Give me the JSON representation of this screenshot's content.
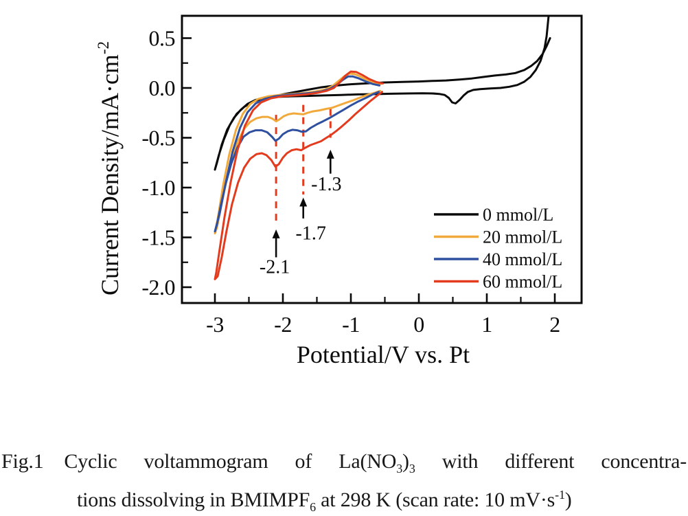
{
  "caption": {
    "line1": [
      {
        "t": "Fig.1"
      },
      {
        "t": " "
      },
      {
        "t": "Cyclic voltammogram of La(NO"
      },
      {
        "t": "3",
        "sub": true
      },
      {
        "t": ")"
      },
      {
        "t": "3",
        "sub": true
      },
      {
        "t": " with different concentra-"
      }
    ],
    "line2": [
      {
        "t": "tions dissolving in BMIMPF"
      },
      {
        "t": "6",
        "sub": true
      },
      {
        "t": " at 298 K (scan rate: 10 mV·s"
      },
      {
        "t": "-1",
        "sup": true
      },
      {
        "t": ")"
      }
    ]
  },
  "chart_data": {
    "type": "line",
    "title": "",
    "xlabel": "Potential/V vs. Pt",
    "ylabel": "Current Density/mA·cm-2",
    "ylabel_segments": [
      {
        "t": "Current Density/mA·cm"
      },
      {
        "t": "-2",
        "sup": true
      }
    ],
    "xlim": [
      -3.49,
      2.4
    ],
    "ylim": [
      -2.16,
      0.72
    ],
    "grid": false,
    "x_ticks": {
      "major": [
        {
          "v": -3,
          "label": "-3"
        },
        {
          "v": -2,
          "label": "-2"
        },
        {
          "v": -1,
          "label": "-1"
        },
        {
          "v": 0,
          "label": "0"
        },
        {
          "v": 1,
          "label": "1"
        },
        {
          "v": 2,
          "label": "2"
        }
      ],
      "minor": [
        -2.5,
        -1.5,
        -0.5,
        0.5,
        1.5
      ]
    },
    "y_ticks": {
      "major": [
        {
          "v": 0.5,
          "label": "0.5"
        },
        {
          "v": 0.0,
          "label": "0.0"
        },
        {
          "v": -0.5,
          "label": "-0.5"
        },
        {
          "v": -1.0,
          "label": "-1.0"
        },
        {
          "v": -1.5,
          "label": "-1.5"
        },
        {
          "v": -2.0,
          "label": "-2.0"
        }
      ],
      "minor": [
        0.25,
        -0.25,
        -0.75,
        -1.25,
        -1.75
      ]
    },
    "legend": {
      "position": "right-center",
      "entries": [
        "0 mmol/L",
        "20 mmol/L",
        "40 mmol/L",
        "60 mmol/L"
      ]
    },
    "annotation_color": "#e23b1e",
    "annotations": [
      {
        "label": "-2.1",
        "x": -2.1,
        "dash_from": -0.27,
        "dash_to": -1.38,
        "arrow_tail": -1.7,
        "arrow_head": -1.42,
        "label_y": -1.79,
        "label_dx": -2
      },
      {
        "label": "-1.7",
        "x": -1.7,
        "dash_from": -0.17,
        "dash_to": -1.07,
        "arrow_tail": -1.31,
        "arrow_head": -1.1,
        "label_y": -1.45,
        "label_dx": 11
      },
      {
        "label": "-1.3",
        "x": -1.3,
        "dash_from": -0.21,
        "dash_to": -0.5,
        "arrow_tail": -0.86,
        "arrow_head": -0.62,
        "label_y": -0.96,
        "label_dx": -6
      }
    ],
    "series": [
      {
        "name": "0 mmol/L",
        "color": "#0a0a0a",
        "points": [
          [
            1.93,
            0.5
          ],
          [
            1.88,
            0.42
          ],
          [
            1.82,
            0.34
          ],
          [
            1.74,
            0.27
          ],
          [
            1.65,
            0.22
          ],
          [
            1.55,
            0.18
          ],
          [
            1.42,
            0.15
          ],
          [
            1.28,
            0.135
          ],
          [
            1.12,
            0.125
          ],
          [
            0.95,
            0.11
          ],
          [
            0.78,
            0.095
          ],
          [
            0.6,
            0.085
          ],
          [
            0.4,
            0.075
          ],
          [
            0.2,
            0.07
          ],
          [
            0.0,
            0.065
          ],
          [
            -0.25,
            0.06
          ],
          [
            -0.5,
            0.055
          ],
          [
            -0.75,
            0.047
          ],
          [
            -1.0,
            0.037
          ],
          [
            -1.25,
            0.022
          ],
          [
            -1.45,
            0.005
          ],
          [
            -1.65,
            -0.02
          ],
          [
            -1.85,
            -0.045
          ],
          [
            -2.0,
            -0.065
          ],
          [
            -2.15,
            -0.085
          ],
          [
            -2.3,
            -0.105
          ],
          [
            -2.45,
            -0.14
          ],
          [
            -2.57,
            -0.19
          ],
          [
            -2.68,
            -0.26
          ],
          [
            -2.78,
            -0.37
          ],
          [
            -2.87,
            -0.52
          ],
          [
            -2.94,
            -0.67
          ],
          [
            -3.0,
            -0.82
          ],
          [
            -2.97,
            -0.75
          ],
          [
            -2.9,
            -0.57
          ],
          [
            -2.82,
            -0.42
          ],
          [
            -2.72,
            -0.3
          ],
          [
            -2.62,
            -0.22
          ],
          [
            -2.52,
            -0.16
          ],
          [
            -2.4,
            -0.12
          ],
          [
            -2.28,
            -0.1
          ],
          [
            -2.12,
            -0.09
          ],
          [
            -1.9,
            -0.085
          ],
          [
            -1.65,
            -0.08
          ],
          [
            -1.4,
            -0.075
          ],
          [
            -1.15,
            -0.07
          ],
          [
            -0.9,
            -0.065
          ],
          [
            -0.65,
            -0.062
          ],
          [
            -0.4,
            -0.058
          ],
          [
            -0.15,
            -0.055
          ],
          [
            0.05,
            -0.053
          ],
          [
            0.2,
            -0.055
          ],
          [
            0.3,
            -0.06
          ],
          [
            0.38,
            -0.07
          ],
          [
            0.44,
            -0.1
          ],
          [
            0.49,
            -0.145
          ],
          [
            0.54,
            -0.155
          ],
          [
            0.6,
            -0.12
          ],
          [
            0.66,
            -0.075
          ],
          [
            0.72,
            -0.04
          ],
          [
            0.8,
            -0.02
          ],
          [
            0.9,
            -0.012
          ],
          [
            1.05,
            -0.005
          ],
          [
            1.2,
            0.0
          ],
          [
            1.33,
            0.012
          ],
          [
            1.45,
            0.03
          ],
          [
            1.55,
            0.062
          ],
          [
            1.64,
            0.11
          ],
          [
            1.72,
            0.18
          ],
          [
            1.79,
            0.27
          ],
          [
            1.85,
            0.4
          ],
          [
            1.88,
            0.52
          ],
          [
            1.91,
            0.73
          ]
        ]
      },
      {
        "name": "20 mmol/L",
        "color": "#f2a93b",
        "points": [
          [
            -0.56,
            0.04
          ],
          [
            -0.66,
            0.055
          ],
          [
            -0.76,
            0.08
          ],
          [
            -0.86,
            0.115
          ],
          [
            -0.95,
            0.14
          ],
          [
            -1.02,
            0.145
          ],
          [
            -1.1,
            0.115
          ],
          [
            -1.18,
            0.07
          ],
          [
            -1.27,
            0.02
          ],
          [
            -1.38,
            -0.015
          ],
          [
            -1.52,
            -0.035
          ],
          [
            -1.68,
            -0.05
          ],
          [
            -1.86,
            -0.06
          ],
          [
            -2.05,
            -0.07
          ],
          [
            -2.22,
            -0.085
          ],
          [
            -2.36,
            -0.11
          ],
          [
            -2.48,
            -0.16
          ],
          [
            -2.59,
            -0.26
          ],
          [
            -2.69,
            -0.42
          ],
          [
            -2.79,
            -0.67
          ],
          [
            -2.88,
            -0.98
          ],
          [
            -2.95,
            -1.28
          ],
          [
            -3.0,
            -1.46
          ],
          [
            -2.97,
            -1.4
          ],
          [
            -2.9,
            -1.16
          ],
          [
            -2.83,
            -0.93
          ],
          [
            -2.75,
            -0.71
          ],
          [
            -2.66,
            -0.53
          ],
          [
            -2.57,
            -0.41
          ],
          [
            -2.48,
            -0.34
          ],
          [
            -2.39,
            -0.305
          ],
          [
            -2.3,
            -0.29
          ],
          [
            -2.22,
            -0.29
          ],
          [
            -2.15,
            -0.31
          ],
          [
            -2.1,
            -0.335
          ],
          [
            -2.05,
            -0.315
          ],
          [
            -1.99,
            -0.285
          ],
          [
            -1.92,
            -0.265
          ],
          [
            -1.84,
            -0.255
          ],
          [
            -1.77,
            -0.26
          ],
          [
            -1.7,
            -0.265
          ],
          [
            -1.64,
            -0.25
          ],
          [
            -1.56,
            -0.235
          ],
          [
            -1.46,
            -0.225
          ],
          [
            -1.36,
            -0.21
          ],
          [
            -1.28,
            -0.2
          ],
          [
            -1.18,
            -0.175
          ],
          [
            -1.08,
            -0.15
          ],
          [
            -0.97,
            -0.125
          ],
          [
            -0.86,
            -0.095
          ],
          [
            -0.76,
            -0.07
          ],
          [
            -0.66,
            -0.05
          ],
          [
            -0.57,
            -0.03
          ]
        ]
      },
      {
        "name": "40 mmol/L",
        "color": "#2f4f9f",
        "points": [
          [
            -0.58,
            0.025
          ],
          [
            -0.68,
            0.04
          ],
          [
            -0.78,
            0.065
          ],
          [
            -0.88,
            0.095
          ],
          [
            -0.97,
            0.115
          ],
          [
            -1.04,
            0.115
          ],
          [
            -1.12,
            0.08
          ],
          [
            -1.21,
            0.03
          ],
          [
            -1.31,
            -0.01
          ],
          [
            -1.43,
            -0.035
          ],
          [
            -1.58,
            -0.05
          ],
          [
            -1.75,
            -0.06
          ],
          [
            -1.94,
            -0.07
          ],
          [
            -2.12,
            -0.085
          ],
          [
            -2.27,
            -0.11
          ],
          [
            -2.4,
            -0.155
          ],
          [
            -2.52,
            -0.245
          ],
          [
            -2.63,
            -0.4
          ],
          [
            -2.74,
            -0.64
          ],
          [
            -2.84,
            -0.95
          ],
          [
            -2.93,
            -1.26
          ],
          [
            -3.0,
            -1.44
          ],
          [
            -2.97,
            -1.37
          ],
          [
            -2.91,
            -1.17
          ],
          [
            -2.84,
            -0.96
          ],
          [
            -2.76,
            -0.76
          ],
          [
            -2.67,
            -0.6
          ],
          [
            -2.58,
            -0.49
          ],
          [
            -2.49,
            -0.445
          ],
          [
            -2.4,
            -0.425
          ],
          [
            -2.31,
            -0.425
          ],
          [
            -2.23,
            -0.445
          ],
          [
            -2.16,
            -0.49
          ],
          [
            -2.11,
            -0.53
          ],
          [
            -2.06,
            -0.51
          ],
          [
            -2.0,
            -0.465
          ],
          [
            -1.93,
            -0.435
          ],
          [
            -1.86,
            -0.42
          ],
          [
            -1.79,
            -0.425
          ],
          [
            -1.72,
            -0.44
          ],
          [
            -1.66,
            -0.435
          ],
          [
            -1.59,
            -0.4
          ],
          [
            -1.5,
            -0.365
          ],
          [
            -1.41,
            -0.335
          ],
          [
            -1.31,
            -0.3
          ],
          [
            -1.21,
            -0.26
          ],
          [
            -1.11,
            -0.22
          ],
          [
            -1.0,
            -0.175
          ],
          [
            -0.89,
            -0.135
          ],
          [
            -0.78,
            -0.1
          ],
          [
            -0.68,
            -0.065
          ],
          [
            -0.59,
            -0.04
          ]
        ]
      },
      {
        "name": "60 mmol/L",
        "color": "#e23b1e",
        "points": [
          [
            -0.53,
            0.045
          ],
          [
            -0.63,
            0.06
          ],
          [
            -0.73,
            0.09
          ],
          [
            -0.83,
            0.13
          ],
          [
            -0.92,
            0.16
          ],
          [
            -1.0,
            0.165
          ],
          [
            -1.08,
            0.125
          ],
          [
            -1.16,
            0.06
          ],
          [
            -1.25,
            0.0
          ],
          [
            -1.36,
            -0.03
          ],
          [
            -1.5,
            -0.05
          ],
          [
            -1.66,
            -0.065
          ],
          [
            -1.84,
            -0.075
          ],
          [
            -2.02,
            -0.085
          ],
          [
            -2.18,
            -0.105
          ],
          [
            -2.32,
            -0.145
          ],
          [
            -2.44,
            -0.225
          ],
          [
            -2.56,
            -0.38
          ],
          [
            -2.67,
            -0.63
          ],
          [
            -2.77,
            -0.95
          ],
          [
            -2.86,
            -1.3
          ],
          [
            -2.93,
            -1.62
          ],
          [
            -2.98,
            -1.85
          ],
          [
            -3.0,
            -1.92
          ],
          [
            -2.96,
            -1.89
          ],
          [
            -2.9,
            -1.7
          ],
          [
            -2.83,
            -1.44
          ],
          [
            -2.75,
            -1.17
          ],
          [
            -2.66,
            -0.95
          ],
          [
            -2.57,
            -0.8
          ],
          [
            -2.48,
            -0.71
          ],
          [
            -2.39,
            -0.665
          ],
          [
            -2.31,
            -0.655
          ],
          [
            -2.24,
            -0.675
          ],
          [
            -2.17,
            -0.725
          ],
          [
            -2.11,
            -0.79
          ],
          [
            -2.06,
            -0.765
          ],
          [
            -2.0,
            -0.7
          ],
          [
            -1.94,
            -0.655
          ],
          [
            -1.87,
            -0.625
          ],
          [
            -1.8,
            -0.615
          ],
          [
            -1.73,
            -0.625
          ],
          [
            -1.67,
            -0.6
          ],
          [
            -1.6,
            -0.575
          ],
          [
            -1.52,
            -0.555
          ],
          [
            -1.44,
            -0.535
          ],
          [
            -1.36,
            -0.5
          ],
          [
            -1.3,
            -0.475
          ],
          [
            -1.22,
            -0.435
          ],
          [
            -1.13,
            -0.385
          ],
          [
            -1.03,
            -0.325
          ],
          [
            -0.93,
            -0.26
          ],
          [
            -0.82,
            -0.195
          ],
          [
            -0.71,
            -0.13
          ],
          [
            -0.61,
            -0.075
          ],
          [
            -0.54,
            -0.04
          ]
        ]
      }
    ]
  }
}
